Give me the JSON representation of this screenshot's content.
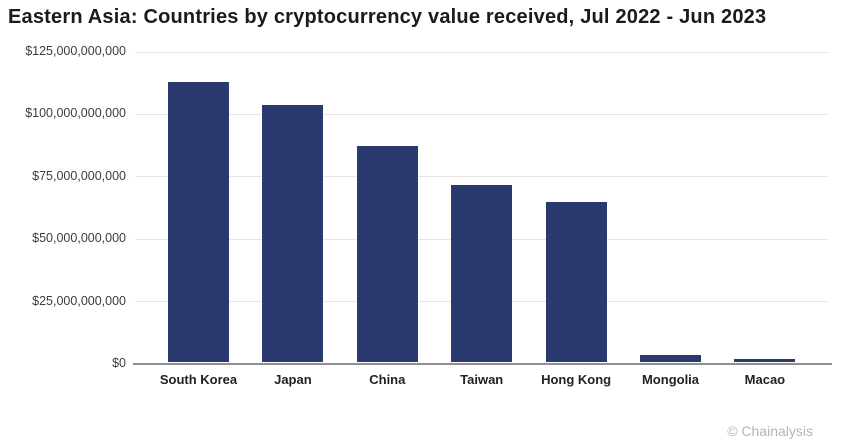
{
  "header": {
    "title": "Eastern Asia: Countries by cryptocurrency value received, Jul 2022 - Jun 2023"
  },
  "attribution": {
    "label": "© Chainalysis"
  },
  "colors": {
    "bar": "#2b3a6e",
    "grid": "#e5e5e5",
    "axis": "#8f8f8f",
    "title": "#1b1b1b",
    "tick_label": "#3c3c3c",
    "x_label": "#222222",
    "attribution": "#b5b5b5",
    "background": "#ffffff"
  },
  "chart_data": {
    "type": "bar",
    "title": "Eastern Asia: Countries by cryptocurrency value received, Jul 2022 - Jun 2023",
    "categories": [
      "South Korea",
      "Japan",
      "China",
      "Taiwan",
      "Hong Kong",
      "Mongolia",
      "Macao"
    ],
    "values": [
      112000000000,
      103000000000,
      86500000000,
      71000000000,
      64000000000,
      3000000000,
      1300000000
    ],
    "xlabel": "",
    "ylabel": "",
    "ylim": [
      0,
      125000000000
    ],
    "grid": "horizontal-only",
    "legend": "none",
    "bar_color": "#2b3a6e",
    "y_ticks": [
      {
        "value": 0,
        "label": "$0"
      },
      {
        "value": 25000000000,
        "label": "$25,000,000,000"
      },
      {
        "value": 50000000000,
        "label": "$50,000,000,000"
      },
      {
        "value": 75000000000,
        "label": "$75,000,000,000"
      },
      {
        "value": 100000000000,
        "label": "$100,000,000,000"
      },
      {
        "value": 125000000000,
        "label": "$125,000,000,000"
      }
    ]
  }
}
